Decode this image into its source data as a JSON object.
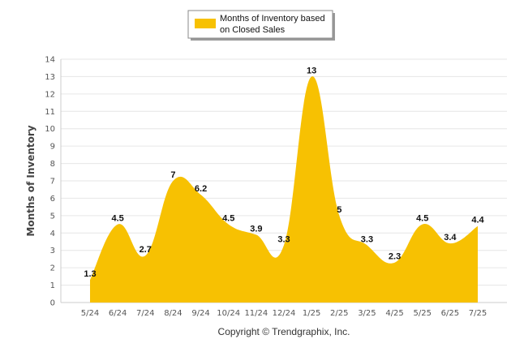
{
  "chart_data": {
    "type": "area",
    "title": "",
    "xlabel": "",
    "ylabel": "Months of Inventory",
    "categories": [
      "5/24",
      "6/24",
      "7/24",
      "8/24",
      "9/24",
      "10/24",
      "11/24",
      "12/24",
      "1/25",
      "2/25",
      "3/25",
      "4/25",
      "5/25",
      "6/25",
      "7/25"
    ],
    "series": [
      {
        "name": "Months of Inventory based on Closed Sales",
        "values": [
          1.3,
          4.5,
          2.7,
          7,
          6.2,
          4.5,
          3.9,
          3.3,
          13,
          5,
          3.3,
          2.3,
          4.5,
          3.4,
          4.4
        ],
        "labels": [
          "1.3",
          "4.5",
          "2.7",
          "7",
          "6.2",
          "4.5",
          "3.9",
          "3.3",
          "13",
          "5",
          "3.3",
          "2.3",
          "4.5",
          "3.4",
          "4.4"
        ]
      }
    ],
    "ylim": [
      0,
      14
    ],
    "yticks": [
      0,
      1,
      2,
      3,
      4,
      5,
      6,
      7,
      8,
      9,
      10,
      11,
      12,
      13,
      14
    ],
    "grid": true,
    "legend": "top-center",
    "colors": {
      "fill": "#F7C102",
      "grid": "#e6e6e6",
      "axis": "#cccccc"
    }
  },
  "legend": {
    "line1": "Months of Inventory based",
    "line2": "on Closed Sales"
  },
  "footer": "Copyright © Trendgraphix, Inc."
}
